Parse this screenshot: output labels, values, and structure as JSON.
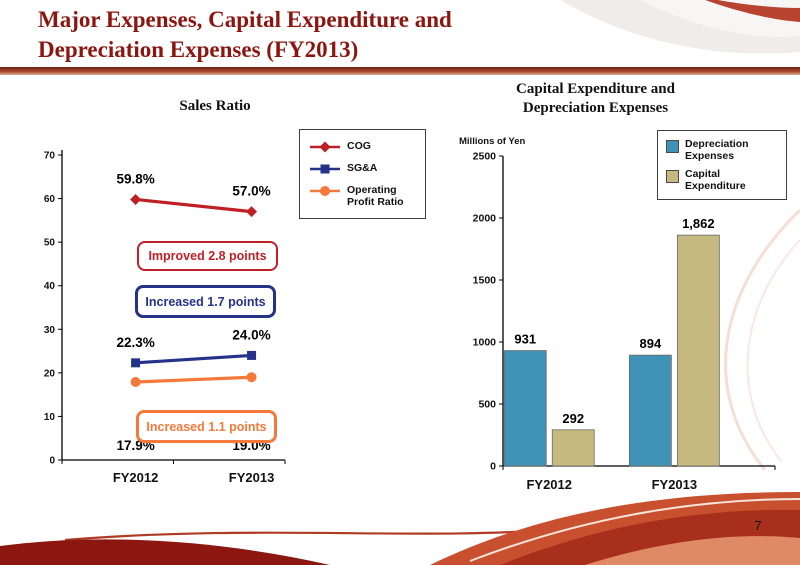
{
  "page": {
    "title_line1": "Major Expenses, Capital Expenditure and",
    "title_line2": "Depreciation Expenses (FY2013)",
    "page_number": "7"
  },
  "colors": {
    "title_text": "#8c1510",
    "accent_band_dark": "#6f2013",
    "accent_band_light": "#ddac93",
    "cog_red": "#bf2026",
    "sga_navy": "#25328a",
    "operating_profit_orange": "#f4793b",
    "depreciation_teal": "#3f93b7",
    "capex_tan": "#c6b97f"
  },
  "chart_data": [
    {
      "type": "line",
      "title": "Sales Ratio",
      "categories": [
        "FY2012",
        "FY2013"
      ],
      "ylim": [
        0,
        70
      ],
      "ytick_step": 10,
      "grid": false,
      "legend_position": "right-top",
      "series": [
        {
          "name": "COG",
          "marker": "diamond",
          "color": "#bf2026",
          "values": [
            59.8,
            57.0
          ],
          "point_labels": [
            "59.8%",
            "57.0%"
          ],
          "label_placement": "above"
        },
        {
          "name": "SG&A",
          "marker": "square",
          "color": "#25328a",
          "values": [
            22.3,
            24.0
          ],
          "point_labels": [
            "22.3%",
            "24.0%"
          ],
          "label_placement": "above"
        },
        {
          "name": "Operating Profit Ratio",
          "marker": "circle",
          "color": "#f4793b",
          "values": [
            17.9,
            19.0
          ],
          "point_labels": [
            "17.9%",
            "19.0%"
          ],
          "label_placement": "near-axis"
        }
      ],
      "annotations": [
        {
          "text": "Improved 2.8 points",
          "color": "#bf2026"
        },
        {
          "text": "Increased 1.7 points",
          "color": "#25328a"
        },
        {
          "text": "Increased 1.1 points",
          "color": "#f4793b"
        }
      ]
    },
    {
      "type": "bar",
      "title_lines": [
        "Capital Expenditure and",
        "Depreciation Expenses"
      ],
      "units_label": "Millions of Yen",
      "categories": [
        "FY2012",
        "FY2013"
      ],
      "ylim": [
        0,
        2500
      ],
      "ytick_step": 500,
      "grid": false,
      "legend_position": "top-right",
      "series": [
        {
          "name": "Depreciation Expenses",
          "color": "#3f93b7",
          "values": [
            931,
            894
          ],
          "bar_labels": [
            "931",
            "894"
          ]
        },
        {
          "name": "Capital Expenditure",
          "color": "#c6b97f",
          "values": [
            292,
            1862
          ],
          "bar_labels": [
            "292",
            "1,862"
          ]
        }
      ]
    }
  ]
}
